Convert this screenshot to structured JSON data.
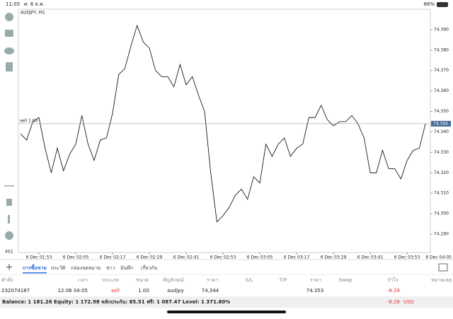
{
  "status_bar": {
    "time": "11:05",
    "date": "ศ. 6 ธ.ค.",
    "battery": "88%"
  },
  "chart_data": {
    "type": "line",
    "title": "AUDJPY, M1",
    "color": "#000000",
    "x": [
      107,
      109,
      111,
      113,
      115,
      117,
      119,
      121,
      123,
      125,
      127,
      129,
      131,
      133,
      135,
      137,
      139,
      141,
      143,
      145,
      147,
      149,
      151,
      153,
      155,
      157,
      159,
      161,
      163,
      165,
      167,
      169,
      171,
      173,
      175,
      177,
      179,
      181,
      183,
      185,
      187,
      189,
      191,
      193,
      195,
      197,
      199,
      201,
      203,
      205,
      207,
      209,
      211,
      213,
      215,
      217,
      219,
      221,
      223,
      225,
      227,
      229,
      231,
      233,
      235,
      237,
      239
    ],
    "values": [
      74.339,
      74.336,
      74.345,
      74.347,
      74.332,
      74.32,
      74.332,
      74.321,
      74.329,
      74.334,
      74.348,
      74.334,
      74.326,
      74.336,
      74.337,
      74.349,
      74.368,
      74.371,
      74.382,
      74.392,
      74.384,
      74.381,
      74.37,
      74.367,
      74.367,
      74.362,
      74.373,
      74.363,
      74.367,
      74.358,
      74.35,
      74.32,
      74.296,
      74.299,
      74.303,
      74.309,
      74.312,
      74.307,
      74.318,
      74.315,
      74.334,
      74.328,
      74.334,
      74.337,
      74.328,
      74.332,
      74.334,
      74.347,
      74.347,
      74.353,
      74.346,
      74.343,
      74.345,
      74.345,
      74.348,
      74.344,
      74.337,
      74.32,
      74.32,
      74.331,
      74.322,
      74.322,
      74.317,
      74.326,
      74.331,
      74.332,
      74.344
    ],
    "xlim": [
      106.3,
      240.6
    ],
    "xticks": [
      {
        "value": 113,
        "label": "6 Dec 01:53"
      },
      {
        "value": 125,
        "label": "6 Dec 02:05"
      },
      {
        "value": 137,
        "label": "6 Dec 02:17"
      },
      {
        "value": 149,
        "label": "6 Dec 02:29"
      },
      {
        "value": 161,
        "label": "6 Dec 02:41"
      },
      {
        "value": 173,
        "label": "6 Dec 02:53"
      },
      {
        "value": 185,
        "label": "6 Dec 03:05"
      },
      {
        "value": 197,
        "label": "6 Dec 03:17"
      },
      {
        "value": 209,
        "label": "6 Dec 03:29"
      },
      {
        "value": 221,
        "label": "6 Dec 03:41"
      },
      {
        "value": 233,
        "label": "6 Dec 03:53"
      },
      {
        "value": 245,
        "label": "6 Dec 04:05"
      }
    ],
    "ylim": [
      74.281,
      74.4
    ],
    "yticks": [
      {
        "value": 74.29,
        "label": "74.290"
      },
      {
        "value": 74.3,
        "label": "74.300"
      },
      {
        "value": 74.31,
        "label": "74.310"
      },
      {
        "value": 74.32,
        "label": "74.320"
      },
      {
        "value": 74.33,
        "label": "74.330"
      },
      {
        "value": 74.34,
        "label": "74.340"
      },
      {
        "value": 74.35,
        "label": "74.350"
      },
      {
        "value": 74.36,
        "label": "74.360"
      },
      {
        "value": 74.37,
        "label": "74.370"
      },
      {
        "value": 74.38,
        "label": "74.380"
      },
      {
        "value": 74.39,
        "label": "74.390"
      }
    ],
    "grid": false,
    "sell_line": {
      "label": "sell 1.00",
      "value": 74.344
    }
  },
  "timeframe": "M1",
  "tabs": [
    "การซื้อขาย",
    "ประวัติ",
    "กล่องจดหมาย",
    "ข่าว",
    "บันทึก",
    "เกี่ยวกับ"
  ],
  "table": {
    "header": [
      "คำสั่ง",
      "เวลา",
      "ประเภท",
      "ขนาด",
      "สัญลักษณ์",
      "ราคา",
      "S/L",
      "T/P",
      "ราคา",
      "Swap",
      "กำไร",
      "หมายเหตุ"
    ],
    "rows": [
      [
        "232074187",
        "12.06 04:05",
        "sell",
        "1.00",
        "audjpy",
        "74,344",
        "74.353",
        "-8.28"
      ]
    ]
  },
  "footer": {
    "summary": "Balance: 1 181.26 Equity: 1 172.98 หลักประกัน: 85.51 ฟรี: 1 087.47 Level: 1 371.80%",
    "profit": "-8.28",
    "currency": "USD"
  }
}
